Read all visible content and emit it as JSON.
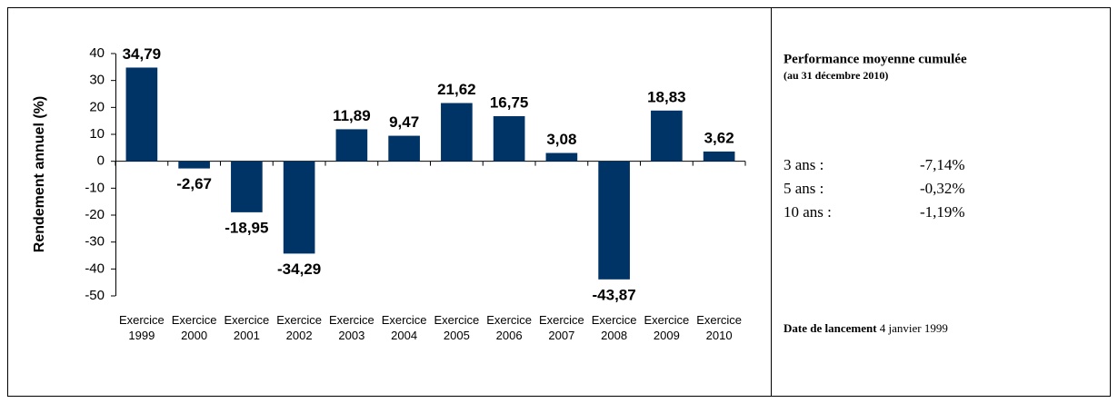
{
  "chart_data": {
    "type": "bar",
    "y_axis_label": "Rendement annuel (%)",
    "categories": [
      "Exercice 1999",
      "Exercice 2000",
      "Exercice 2001",
      "Exercice 2002",
      "Exercice 2003",
      "Exercice 2004",
      "Exercice 2005",
      "Exercice 2006",
      "Exercice 2007",
      "Exercice 2008",
      "Exercice 2009",
      "Exercice 2010"
    ],
    "values": [
      34.79,
      -2.67,
      -18.95,
      -34.29,
      11.89,
      9.47,
      21.62,
      16.75,
      3.08,
      -43.87,
      18.83,
      3.62
    ],
    "value_labels": [
      "34,79",
      "-2,67",
      "-18,95",
      "-34,29",
      "11,89",
      "9,47",
      "21,62",
      "16,75",
      "3,08",
      "-43,87",
      "18,83",
      "3,62"
    ],
    "color": "#003366",
    "ylim": [
      -50,
      40
    ],
    "yticks": [
      40,
      30,
      20,
      10,
      0,
      -10,
      -20,
      -30,
      -40,
      -50
    ],
    "grid": false
  },
  "panel": {
    "title": "Performance moyenne cumulée",
    "subtitle": "(au 31 décembre 2010)",
    "rows": [
      [
        "3 ans :",
        "-7,14%"
      ],
      [
        "5 ans :",
        "-0,32%"
      ],
      [
        "10 ans :",
        "-1,19%"
      ]
    ],
    "launch_label": "Date de lancement",
    "launch_date": "4 janvier 1999"
  }
}
